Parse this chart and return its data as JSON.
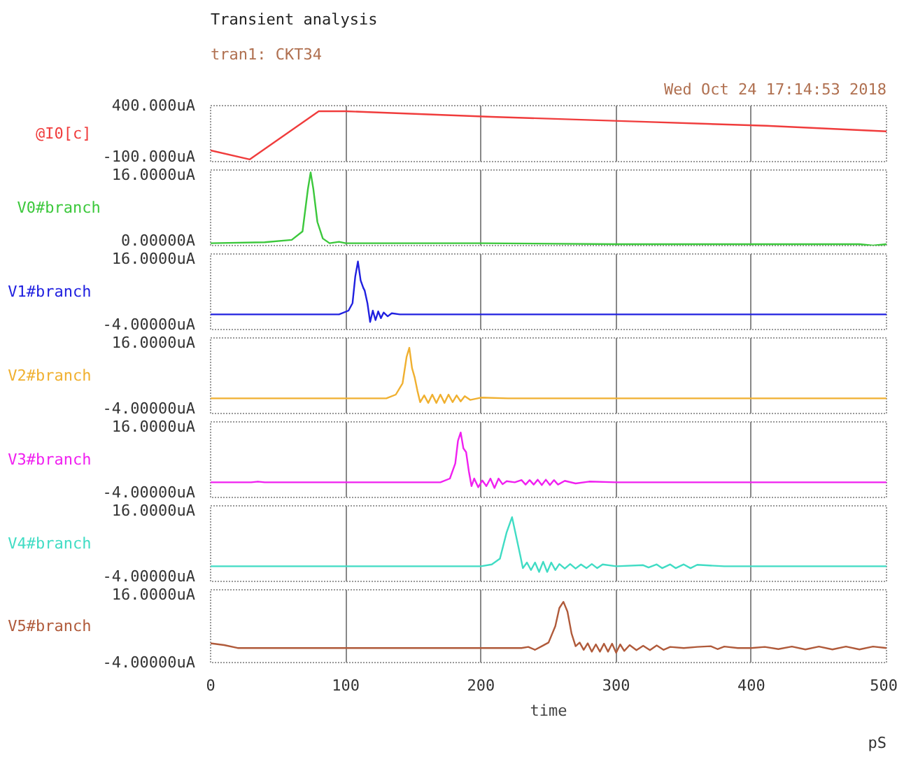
{
  "chart_data": [
    {
      "type": "line",
      "title": "Transient analysis",
      "subtitle": "tran1: CKT34",
      "annotations": [
        "Wed Oct 24 17:14:53 2018"
      ],
      "xlim": [
        0,
        500
      ],
      "xticks": [
        0,
        100,
        200,
        300,
        400,
        500
      ],
      "ylim": [
        -100,
        400
      ],
      "yticks": [
        {
          "value": 400,
          "label": "400.000uA"
        },
        {
          "value": -100,
          "label": "-100.000uA"
        }
      ],
      "grid": "x",
      "tick_labels": "y",
      "series": [
        {
          "name": "@I0[c]",
          "color": "#f03c3c",
          "x": [
            0,
            29,
            80,
            100,
            208,
            310,
            411,
            500
          ],
          "values": [
            0,
            -80,
            350,
            350,
            300,
            260,
            220,
            170
          ]
        }
      ]
    },
    {
      "type": "line",
      "xlim": [
        0,
        500
      ],
      "xticks": [
        0,
        100,
        200,
        300,
        400,
        500
      ],
      "ylim": [
        0,
        16
      ],
      "yticks": [
        {
          "value": 16,
          "label": "16.0000uA"
        },
        {
          "value": 0,
          "label": "0.00000A"
        }
      ],
      "grid": "x",
      "tick_labels": "y",
      "series": [
        {
          "name": "V0#branch",
          "color": "#3cc83c",
          "x": [
            0,
            40,
            60,
            68,
            72,
            74,
            76,
            79,
            83,
            88,
            95,
            100,
            200,
            300,
            400,
            480,
            490,
            500
          ],
          "values": [
            0.5,
            0.7,
            1.2,
            3,
            12,
            15.5,
            12,
            5,
            1.5,
            0.5,
            0.8,
            0.5,
            0.5,
            0.3,
            0.3,
            0.3,
            0,
            0.3
          ]
        }
      ]
    },
    {
      "type": "line",
      "xlim": [
        0,
        500
      ],
      "xticks": [
        0,
        100,
        200,
        300,
        400,
        500
      ],
      "ylim": [
        -4,
        16
      ],
      "yticks": [
        {
          "value": 16,
          "label": "16.0000uA"
        },
        {
          "value": -4,
          "label": "-4.00000uA"
        }
      ],
      "grid": "x",
      "tick_labels": "y",
      "series": [
        {
          "name": "V1#branch",
          "color": "#2020e0",
          "x": [
            0,
            95,
            102,
            105,
            107,
            109,
            111,
            113,
            114,
            116,
            118,
            120,
            122,
            124,
            126,
            128,
            131,
            134,
            140,
            200,
            300,
            400,
            500
          ],
          "values": [
            0,
            0,
            1,
            3,
            10,
            14,
            9,
            7,
            6.3,
            3,
            -2,
            1,
            -1.5,
            0.8,
            -1,
            0.5,
            -0.5,
            0.3,
            0,
            0,
            0,
            0,
            0
          ]
        }
      ]
    },
    {
      "type": "line",
      "xlim": [
        0,
        500
      ],
      "xticks": [
        0,
        100,
        200,
        300,
        400,
        500
      ],
      "ylim": [
        -4,
        16
      ],
      "yticks": [
        {
          "value": 16,
          "label": "16.0000uA"
        },
        {
          "value": -4,
          "label": "-4.00000uA"
        }
      ],
      "grid": "x",
      "tick_labels": "y",
      "series": [
        {
          "name": "V2#branch",
          "color": "#f0b030",
          "x": [
            0,
            100,
            130,
            137,
            142,
            145,
            147,
            149,
            151,
            153,
            155,
            158,
            161,
            164,
            167,
            170,
            173,
            176,
            179,
            182,
            185,
            188,
            192,
            200,
            220,
            300,
            400,
            500
          ],
          "values": [
            0,
            0,
            0,
            1,
            4,
            11,
            13.4,
            8,
            5.5,
            2,
            -1,
            0.8,
            -1.2,
            1,
            -1.2,
            1,
            -1.2,
            1,
            -1,
            0.8,
            -0.8,
            0.6,
            -0.4,
            0.2,
            0,
            0,
            0,
            0
          ]
        }
      ]
    },
    {
      "type": "line",
      "xlim": [
        0,
        500
      ],
      "xticks": [
        0,
        100,
        200,
        300,
        400,
        500
      ],
      "ylim": [
        -4,
        16
      ],
      "yticks": [
        {
          "value": 16,
          "label": "16.0000uA"
        },
        {
          "value": -4,
          "label": "-4.00000uA"
        }
      ],
      "grid": "x",
      "tick_labels": "y",
      "series": [
        {
          "name": "V3#branch",
          "color": "#f020f0",
          "x": [
            0,
            30,
            35,
            40,
            170,
            177,
            181,
            183,
            185,
            187,
            189,
            191,
            193,
            195,
            198,
            201,
            204,
            207,
            210,
            213,
            216,
            219,
            225,
            230,
            233,
            236,
            239,
            242,
            245,
            248,
            251,
            254,
            257,
            262,
            270,
            280,
            300,
            400,
            500
          ],
          "values": [
            0,
            0,
            0.2,
            0,
            0,
            1,
            5,
            11,
            13.2,
            9,
            8,
            3,
            -1,
            1,
            -1.3,
            0.5,
            -1,
            1,
            -1.5,
            1,
            -0.5,
            0.3,
            0,
            0.6,
            -0.6,
            0.6,
            -0.6,
            0.7,
            -0.7,
            0.7,
            -0.7,
            0.6,
            -0.6,
            0.4,
            -0.3,
            0.2,
            0,
            0,
            0
          ]
        }
      ]
    },
    {
      "type": "line",
      "xlim": [
        0,
        500
      ],
      "xticks": [
        0,
        100,
        200,
        300,
        400,
        500
      ],
      "ylim": [
        -4,
        16
      ],
      "yticks": [
        {
          "value": 16,
          "label": "16.0000uA"
        },
        {
          "value": -4,
          "label": "-4.00000uA"
        }
      ],
      "grid": "x",
      "tick_labels": "y",
      "series": [
        {
          "name": "V4#branch",
          "color": "#40dcc4",
          "x": [
            0,
            200,
            208,
            214,
            219,
            223,
            226,
            229,
            231,
            234,
            237,
            240,
            243,
            246,
            249,
            252,
            255,
            258,
            262,
            266,
            270,
            274,
            278,
            282,
            286,
            290,
            300,
            320,
            324,
            330,
            334,
            340,
            344,
            350,
            355,
            360,
            380,
            400,
            500
          ],
          "values": [
            0,
            0,
            0.5,
            2,
            9,
            13,
            8,
            3,
            -0.5,
            1,
            -1,
            1,
            -1.5,
            1.2,
            -1.5,
            1,
            -1,
            0.6,
            -0.6,
            0.6,
            -0.6,
            0.5,
            -0.5,
            0.6,
            -0.5,
            0.5,
            0,
            0.3,
            -0.3,
            0.5,
            -0.5,
            0.5,
            -0.5,
            0.5,
            -0.5,
            0.4,
            0,
            0,
            0
          ]
        }
      ]
    },
    {
      "type": "line",
      "xlabel": "time",
      "annotations": [
        "pS"
      ],
      "xlim": [
        0,
        500
      ],
      "xticks": [
        0,
        100,
        200,
        300,
        400,
        500
      ],
      "ylim": [
        -4,
        16
      ],
      "yticks": [
        {
          "value": 16,
          "label": "16.0000uA"
        },
        {
          "value": -4,
          "label": "-4.00000uA"
        }
      ],
      "grid": "x",
      "series": [
        {
          "name": "V5#branch",
          "color": "#b05a3a",
          "x": [
            0,
            10,
            20,
            100,
            230,
            235,
            240,
            245,
            250,
            255,
            258,
            261,
            264,
            267,
            270,
            273,
            276,
            279,
            282,
            285,
            288,
            291,
            294,
            297,
            300,
            303,
            306,
            310,
            315,
            320,
            325,
            330,
            335,
            340,
            350,
            360,
            370,
            375,
            380,
            390,
            400,
            410,
            420,
            430,
            440,
            450,
            460,
            470,
            480,
            490,
            500
          ],
          "values": [
            1.3,
            0.8,
            0,
            0,
            0,
            0.3,
            -0.5,
            0.5,
            1.5,
            6,
            11,
            12.7,
            10,
            4,
            0.5,
            1.5,
            -0.5,
            1.3,
            -1,
            1,
            -1,
            1.2,
            -1,
            1.2,
            -1.3,
            1,
            -0.8,
            0.8,
            -0.6,
            0.6,
            -0.6,
            0.7,
            -0.5,
            0.3,
            0,
            0.3,
            0.5,
            -0.3,
            0.4,
            0,
            0,
            0.3,
            -0.3,
            0.4,
            -0.4,
            0.4,
            -0.4,
            0.4,
            -0.4,
            0.4,
            0
          ]
        }
      ]
    }
  ]
}
